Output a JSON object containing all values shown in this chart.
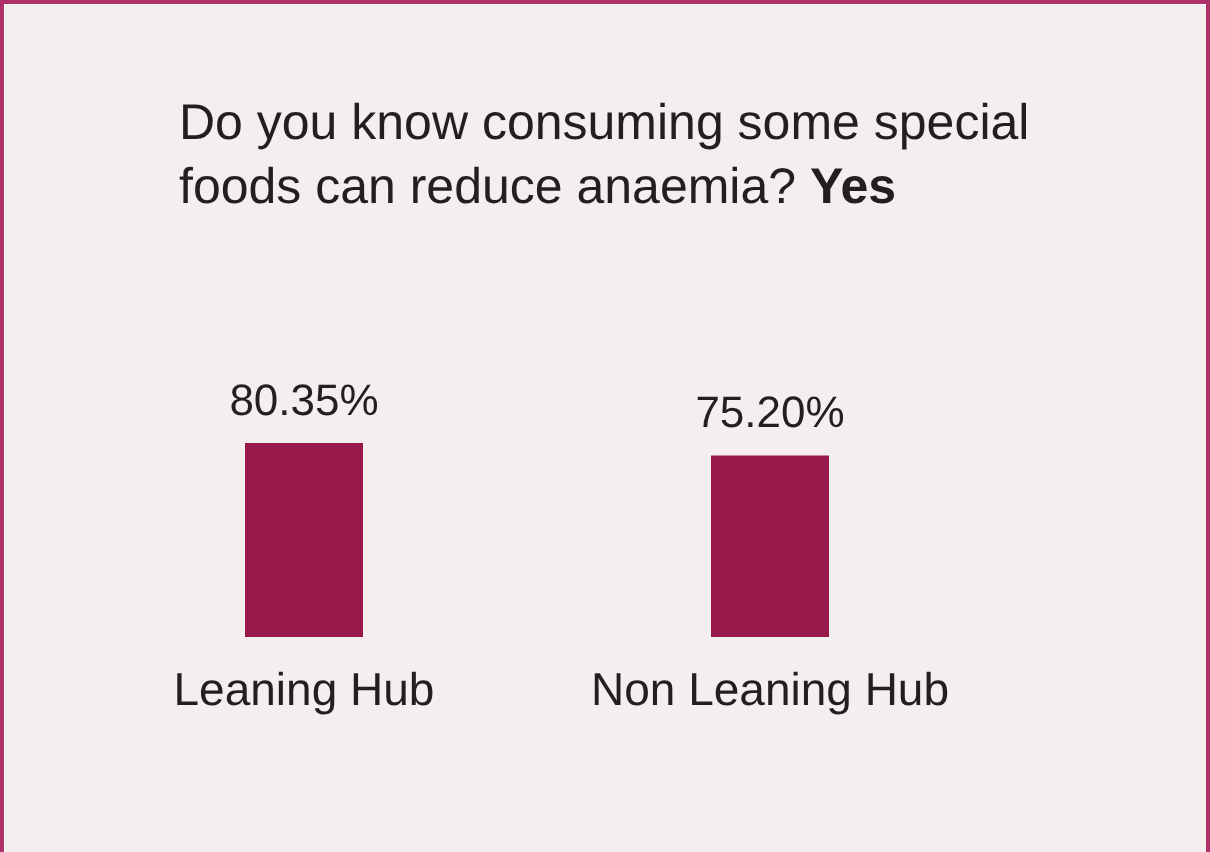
{
  "chart_data": {
    "type": "bar",
    "title": "Do you know consuming some special foods can reduce anaemia? Yes",
    "categories": [
      "Leaning Hub",
      "Non Leaning Hub"
    ],
    "values": [
      80.35,
      75.2
    ],
    "color": "#99194b",
    "value_labels": [
      "80.35%",
      "75.20%"
    ]
  }
}
